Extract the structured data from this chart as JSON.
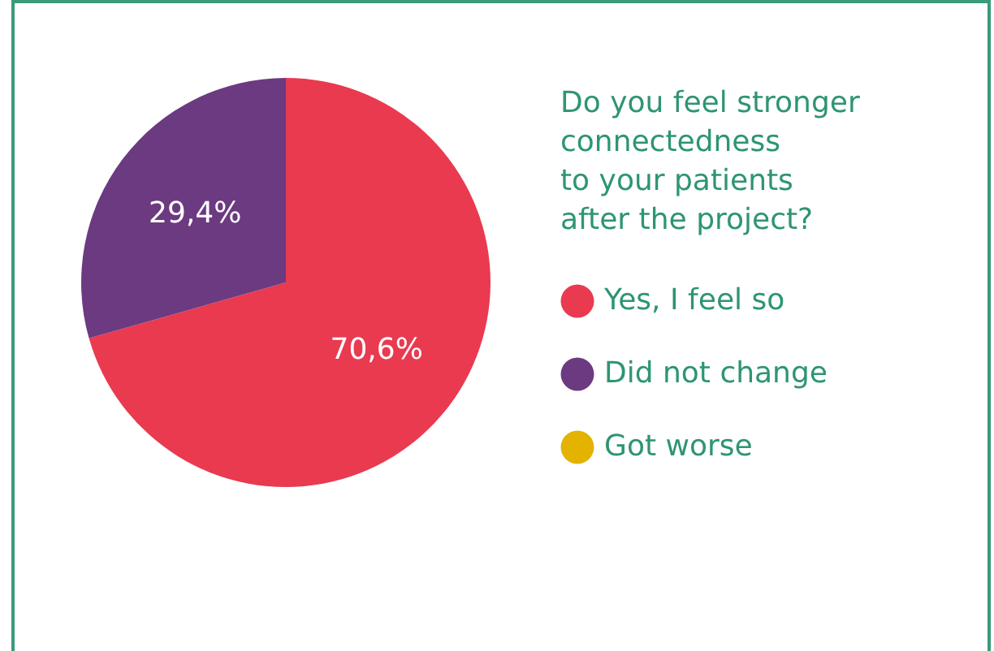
{
  "chart_data": {
    "type": "pie",
    "legend_title": "Do you feel stronger\nconnectedness\nto your patients\nafter the project?",
    "categories": [
      "Yes, I feel so",
      "Did not change",
      "Got worse"
    ],
    "values": [
      70.6,
      29.4,
      0
    ],
    "colors": [
      "#e93a50",
      "#6c3a80",
      "#e3b300"
    ],
    "value_labels": [
      "70,6%",
      "29,4%",
      null
    ],
    "legend": "right"
  }
}
